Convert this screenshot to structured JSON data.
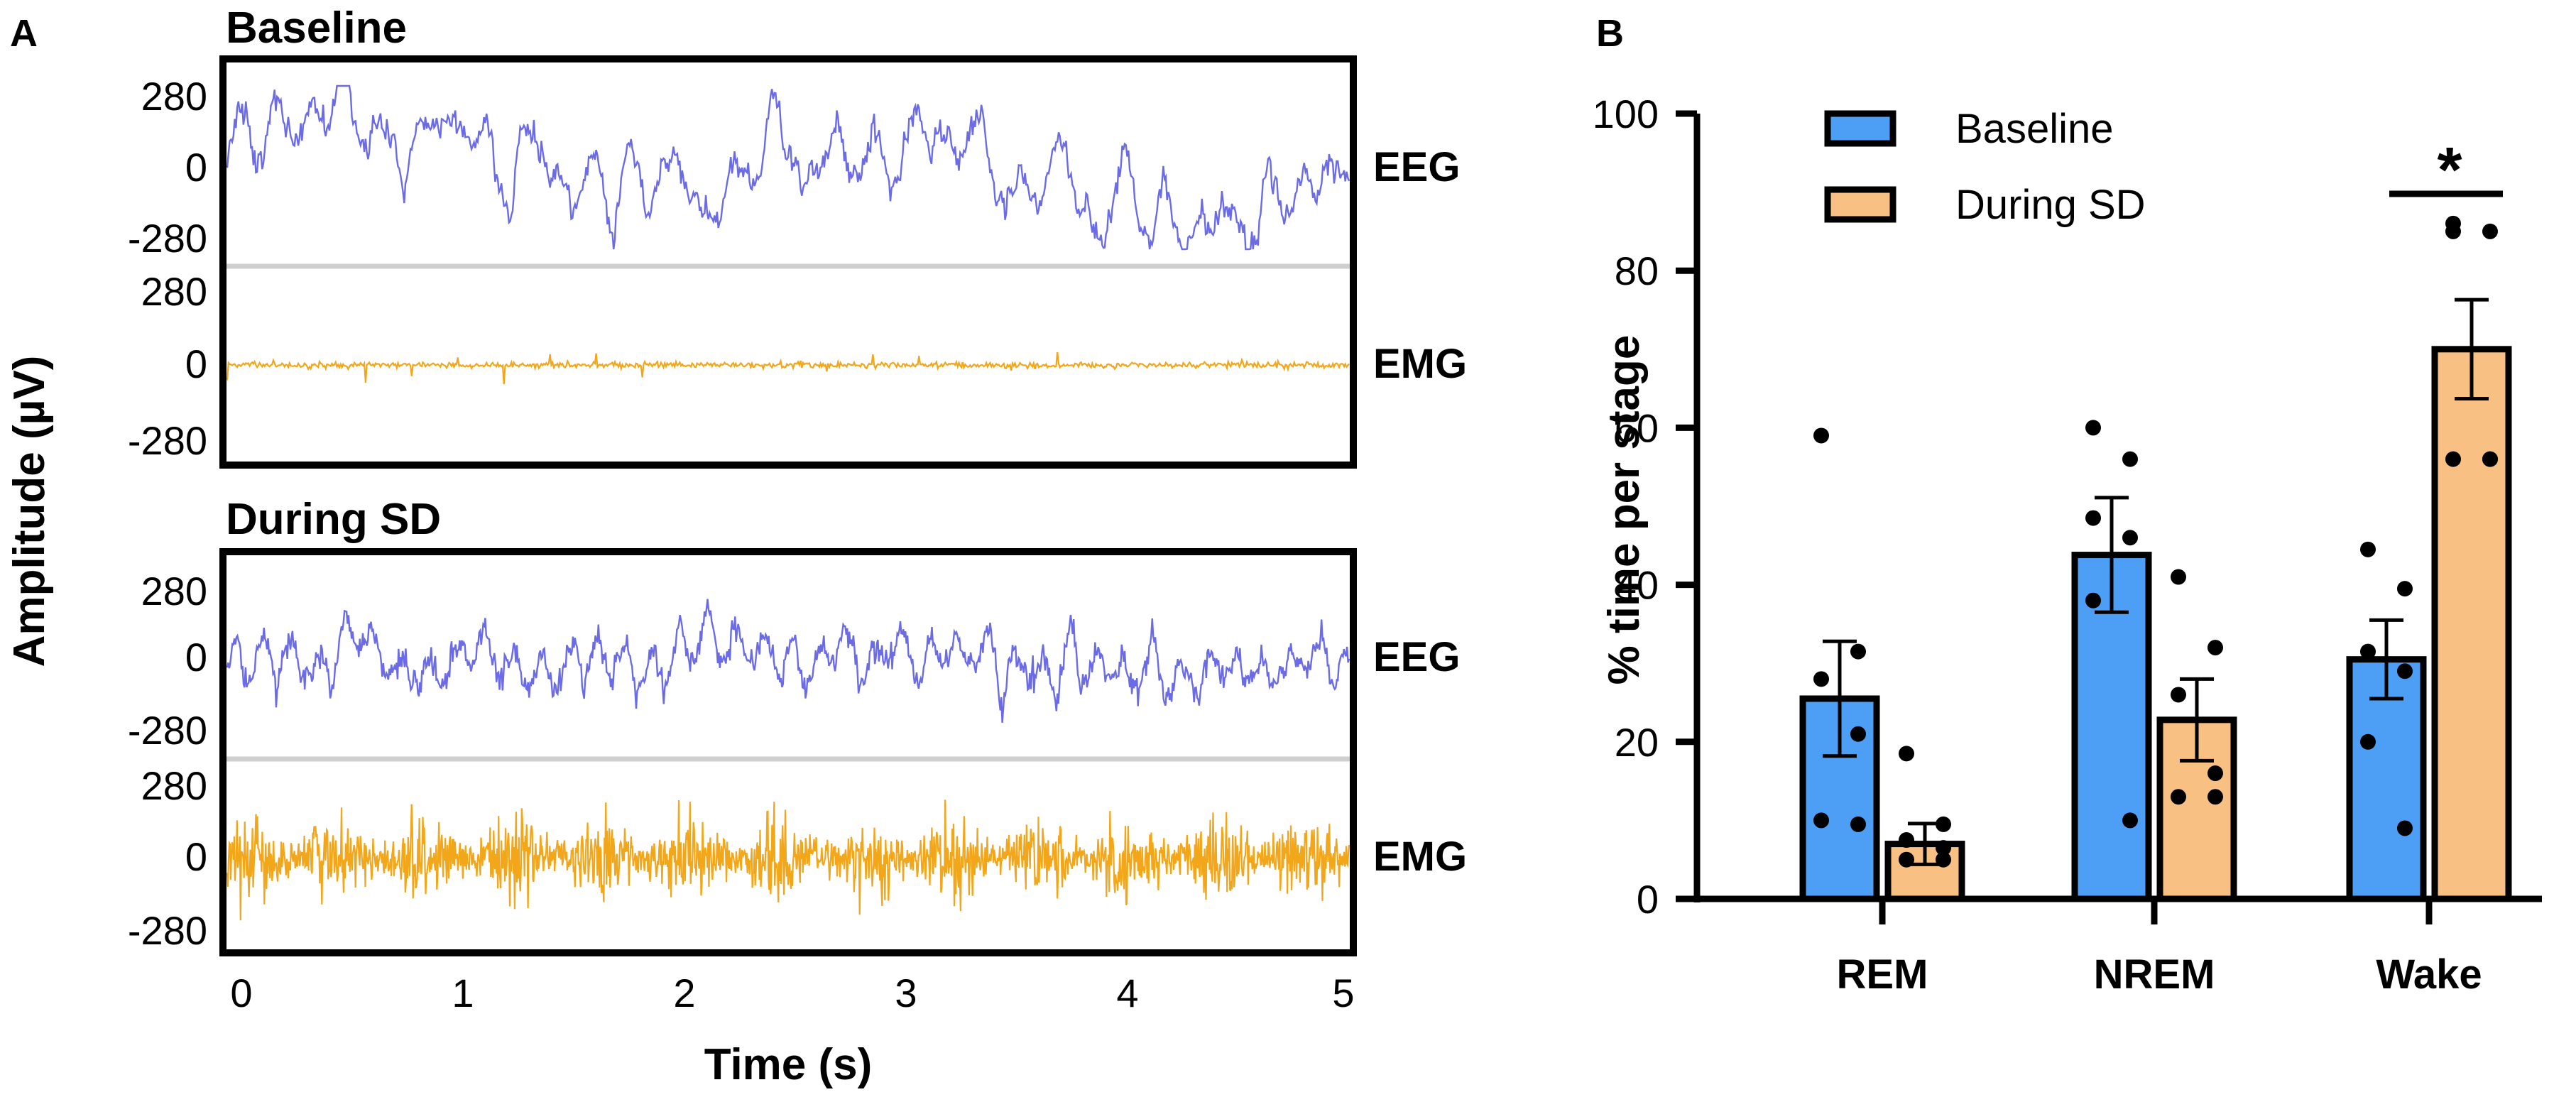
{
  "panel_a": {
    "letter": "A",
    "y_axis_title": "Amplitude (µV)",
    "x_axis_title": "Time (s)",
    "x_ticks": [
      "0",
      "1",
      "2",
      "3",
      "4",
      "5"
    ],
    "amp_ticks": [
      "280",
      "0",
      "-280"
    ],
    "colors": {
      "eeg": "#6b6be6",
      "emg": "#f2a61a"
    },
    "sections": [
      {
        "title": "Baseline",
        "eeg_label": "EEG",
        "emg_label": "EMG",
        "eeg_level": "high",
        "emg_level": "low"
      },
      {
        "title": "During SD",
        "eeg_label": "EEG",
        "emg_label": "EMG",
        "eeg_level": "medium",
        "emg_level": "high"
      }
    ]
  },
  "chart_data": {
    "letter": "B",
    "type": "bar",
    "title": "",
    "xlabel": "",
    "ylabel": "% time per stage",
    "ylim": [
      0,
      100
    ],
    "y_ticks": [
      "0",
      "20",
      "40",
      "60",
      "80",
      "100"
    ],
    "categories": [
      "REM",
      "NREM",
      "Wake"
    ],
    "legend_position": "top-left",
    "series": [
      {
        "name": "Baseline",
        "color": "#4d9ef5",
        "values": [
          25.5,
          43.8,
          30.5
        ],
        "sem": [
          7.3,
          7.3,
          5.0
        ],
        "points": [
          [
            59,
            31.5,
            28,
            21,
            10,
            9.5
          ],
          [
            60,
            56,
            48.5,
            46,
            38,
            10
          ],
          [
            44.5,
            39.5,
            31.5,
            29,
            20,
            9
          ]
        ]
      },
      {
        "name": "During SD",
        "color": "#f9c083",
        "values": [
          7.0,
          22.8,
          70.0
        ],
        "sem": [
          2.6,
          5.2,
          6.3
        ],
        "points": [
          [
            18.5,
            9.5,
            7.5,
            6.5,
            5,
            5
          ],
          [
            41,
            32,
            26,
            16,
            13,
            13
          ],
          [
            86,
            85,
            85,
            56,
            56,
            56
          ]
        ]
      }
    ],
    "significance": [
      {
        "category": "Wake",
        "label": "*"
      }
    ]
  }
}
